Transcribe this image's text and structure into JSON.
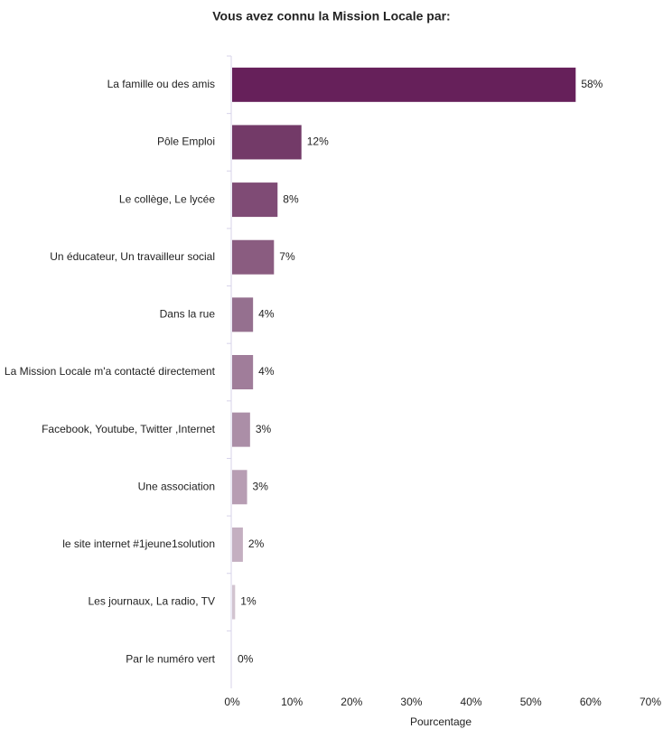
{
  "chart_data": {
    "type": "bar",
    "orientation": "horizontal",
    "title": "Vous avez connu la Mission Locale par:",
    "xlabel": "Pourcentage",
    "categories": [
      "La famille ou des amis",
      "Pôle Emploi",
      "Le collège, Le lycée",
      "Un éducateur, Un travailleur social",
      "Dans la rue",
      "La Mission Locale m'a contacté directement",
      "Facebook, Youtube, Twitter ,Internet",
      "Une association",
      "le site internet #1jeune1solution",
      "Les journaux, La radio, TV",
      "Par le numéro vert"
    ],
    "values": [
      57.5,
      11.6,
      7.6,
      7.0,
      3.5,
      3.5,
      3.0,
      2.5,
      1.8,
      0.5,
      0
    ],
    "value_labels": [
      "58%",
      "12%",
      "8%",
      "7%",
      "4%",
      "4%",
      "3%",
      "3%",
      "2%",
      "1%",
      "0%"
    ],
    "colors": [
      "#66205a",
      "#733a68",
      "#7f4b75",
      "#8a5c80",
      "#95708f",
      "#a07d9a",
      "#ab8ea7",
      "#b79db3",
      "#c4afc1",
      "#d2c4d0",
      "#ddd3dc"
    ],
    "xlim": [
      0,
      70
    ],
    "xticks": [
      {
        "value": 0,
        "label": "0%"
      },
      {
        "value": 10,
        "label": "10%"
      },
      {
        "value": 20,
        "label": "20%"
      },
      {
        "value": 30,
        "label": "30%"
      },
      {
        "value": 40,
        "label": "40%"
      },
      {
        "value": 50,
        "label": "50%"
      },
      {
        "value": 60,
        "label": "60%"
      },
      {
        "value": 70,
        "label": "70%"
      }
    ]
  }
}
